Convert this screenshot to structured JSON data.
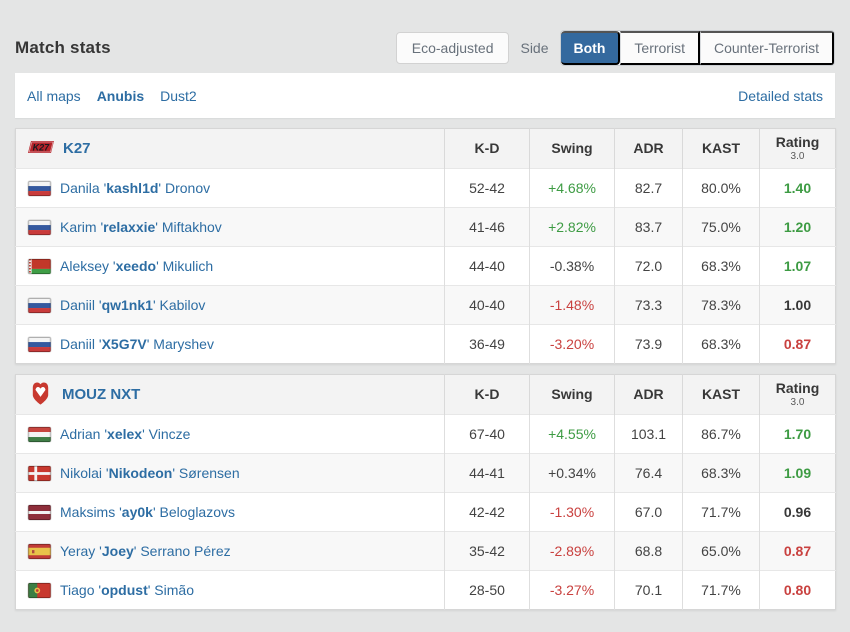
{
  "page": {
    "title": "Match stats"
  },
  "controls": {
    "eco_label": "Eco-adjusted",
    "side_label": "Side",
    "side_options": [
      {
        "label": "Both",
        "active": true
      },
      {
        "label": "Terrorist",
        "active": false
      },
      {
        "label": "Counter-Terrorist",
        "active": false
      }
    ]
  },
  "maps_bar": {
    "maps": [
      {
        "label": "All maps",
        "active": false
      },
      {
        "label": "Anubis",
        "active": true
      },
      {
        "label": "Dust2",
        "active": false
      }
    ],
    "detailed_stats_label": "Detailed stats"
  },
  "table_columns": {
    "kd": "K-D",
    "swing": "Swing",
    "adr": "ADR",
    "kast": "KAST",
    "rating": "Rating",
    "rating_sub": "3.0"
  },
  "teams": [
    {
      "name": "K27",
      "logo": "k27",
      "players": [
        {
          "country": "Russia",
          "flag": "ru",
          "first": "Danila",
          "nick": "kashl1d",
          "last": "Dronov",
          "kd": "52-42",
          "swing": "+4.68%",
          "swing_tone": "pos",
          "adr": "82.7",
          "kast": "80.0%",
          "rating": "1.40",
          "rating_tone": "pos"
        },
        {
          "country": "Russia",
          "flag": "ru",
          "first": "Karim",
          "nick": "relaxxie",
          "last": "Miftakhov",
          "kd": "41-46",
          "swing": "+2.82%",
          "swing_tone": "pos",
          "adr": "83.7",
          "kast": "75.0%",
          "rating": "1.20",
          "rating_tone": "pos"
        },
        {
          "country": "Belarus",
          "flag": "by",
          "first": "Aleksey",
          "nick": "xeedo",
          "last": "Mikulich",
          "kd": "44-40",
          "swing": "-0.38%",
          "swing_tone": "neutral",
          "adr": "72.0",
          "kast": "68.3%",
          "rating": "1.07",
          "rating_tone": "pos"
        },
        {
          "country": "Russia",
          "flag": "ru",
          "first": "Daniil",
          "nick": "qw1nk1",
          "last": "Kabilov",
          "kd": "40-40",
          "swing": "-1.48%",
          "swing_tone": "neg",
          "adr": "73.3",
          "kast": "78.3%",
          "rating": "1.00",
          "rating_tone": "neutral"
        },
        {
          "country": "Russia",
          "flag": "ru",
          "first": "Daniil",
          "nick": "X5G7V",
          "last": "Maryshev",
          "kd": "36-49",
          "swing": "-3.20%",
          "swing_tone": "neg",
          "adr": "73.9",
          "kast": "68.3%",
          "rating": "0.87",
          "rating_tone": "neg"
        }
      ]
    },
    {
      "name": "MOUZ NXT",
      "logo": "mouz",
      "players": [
        {
          "country": "Hungary",
          "flag": "hu",
          "first": "Adrian",
          "nick": "xelex",
          "last": "Vincze",
          "kd": "67-40",
          "swing": "+4.55%",
          "swing_tone": "pos",
          "adr": "103.1",
          "kast": "86.7%",
          "rating": "1.70",
          "rating_tone": "pos"
        },
        {
          "country": "Denmark",
          "flag": "dk",
          "first": "Nikolai",
          "nick": "Nikodeon",
          "last": "Sørensen",
          "kd": "44-41",
          "swing": "+0.34%",
          "swing_tone": "neutral",
          "adr": "76.4",
          "kast": "68.3%",
          "rating": "1.09",
          "rating_tone": "pos"
        },
        {
          "country": "Latvia",
          "flag": "lv",
          "first": "Maksims",
          "nick": "ay0k",
          "last": "Beloglazovs",
          "kd": "42-42",
          "swing": "-1.30%",
          "swing_tone": "neg",
          "adr": "67.0",
          "kast": "71.7%",
          "rating": "0.96",
          "rating_tone": "neutral"
        },
        {
          "country": "Spain",
          "flag": "es",
          "first": "Yeray",
          "nick": "Joey",
          "last": "Serrano Pérez",
          "kd": "35-42",
          "swing": "-2.89%",
          "swing_tone": "neg",
          "adr": "68.8",
          "kast": "65.0%",
          "rating": "0.87",
          "rating_tone": "neg"
        },
        {
          "country": "Portugal",
          "flag": "pt",
          "first": "Tiago",
          "nick": "opdust",
          "last": "Simão",
          "kd": "28-50",
          "swing": "-3.27%",
          "swing_tone": "neg",
          "adr": "70.1",
          "kast": "71.7%",
          "rating": "0.80",
          "rating_tone": "neg"
        }
      ]
    }
  ],
  "colors": {
    "accent_blue": "#2d6da3",
    "active_side_bg": "#34699e",
    "positive_green": "#3d9b43",
    "negative_red": "#c9413f",
    "team_logo_red": "#c8392f"
  }
}
